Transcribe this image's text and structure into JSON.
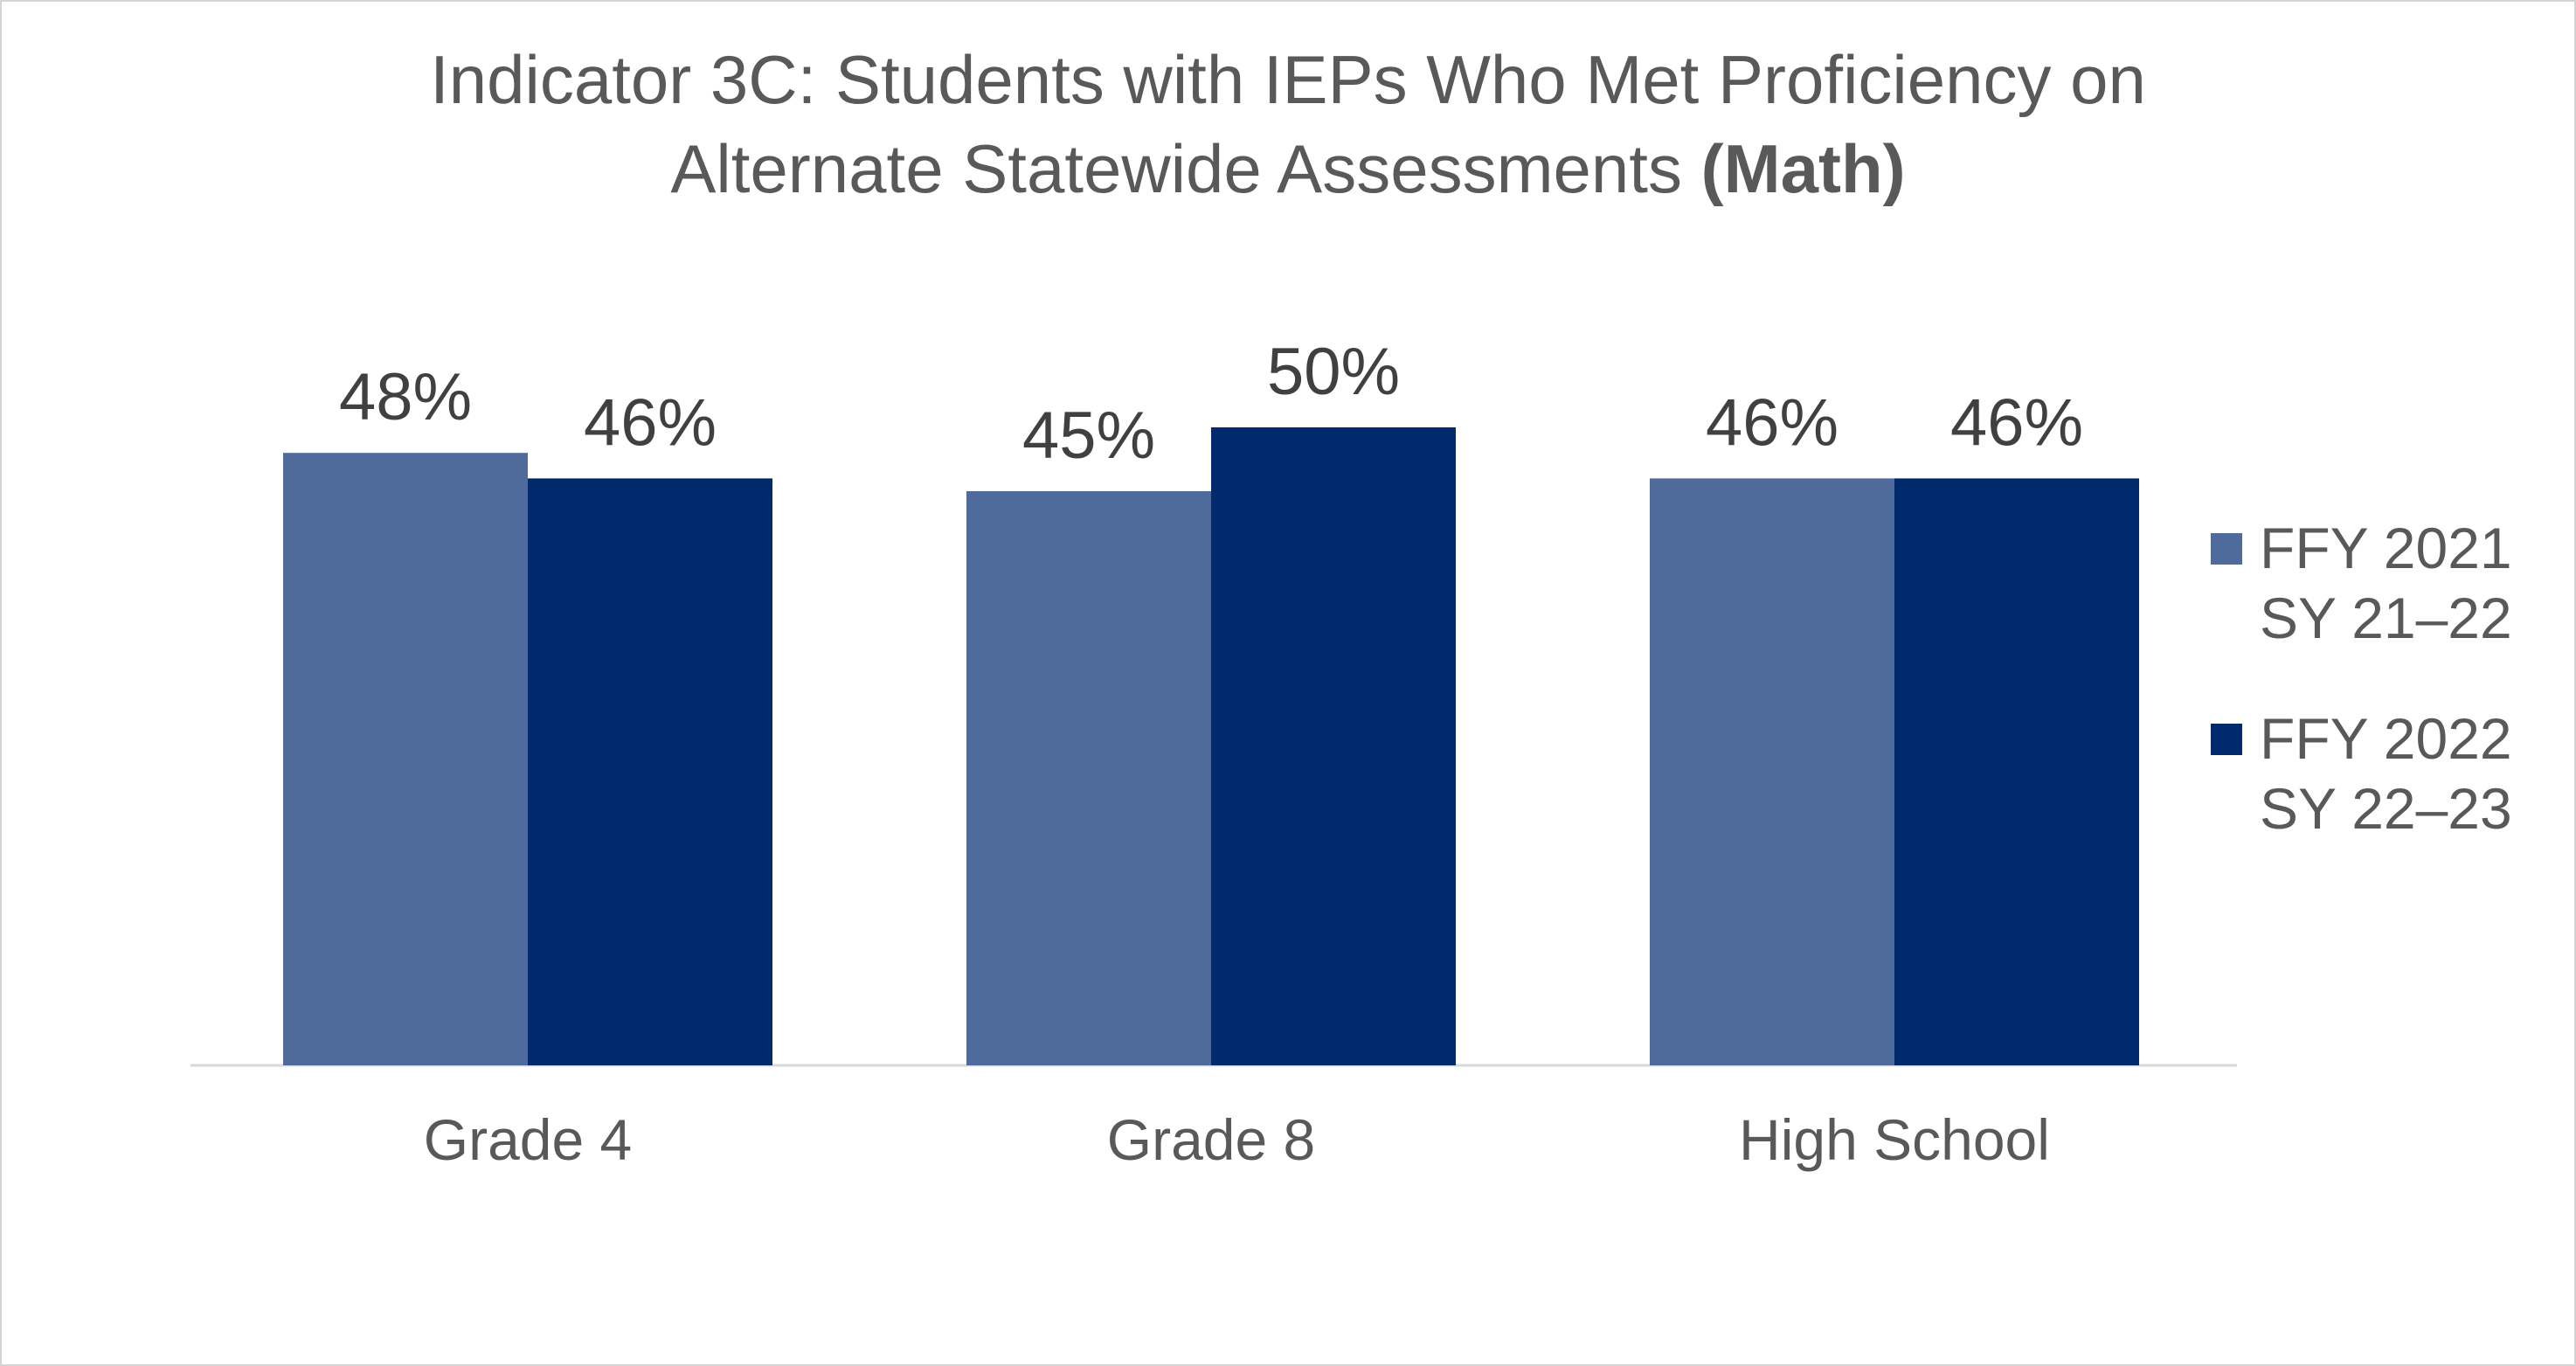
{
  "chart_data": {
    "type": "bar",
    "title_line1": "Indicator 3C: Students with IEPs Who Met Proficiency on",
    "title_line2": "Alternate Statewide Assessments",
    "title_emphasis": "(Math)",
    "categories": [
      "Grade 4",
      "Grade 8",
      "High School"
    ],
    "series": [
      {
        "name_line1": "FFY 2021",
        "name_line2": "SY 21–22",
        "color": "#4e6b9c",
        "values": [
          48,
          45,
          46
        ],
        "labels": [
          "48%",
          "45%",
          "46%"
        ]
      },
      {
        "name_line1": "FFY 2022",
        "name_line2": "SY 22–23",
        "color": "#002a6c",
        "values": [
          46,
          50,
          46
        ],
        "labels": [
          "46%",
          "50%",
          "46%"
        ]
      }
    ],
    "ylim": [
      0,
      65
    ],
    "grid": false,
    "legend_position": "right"
  }
}
